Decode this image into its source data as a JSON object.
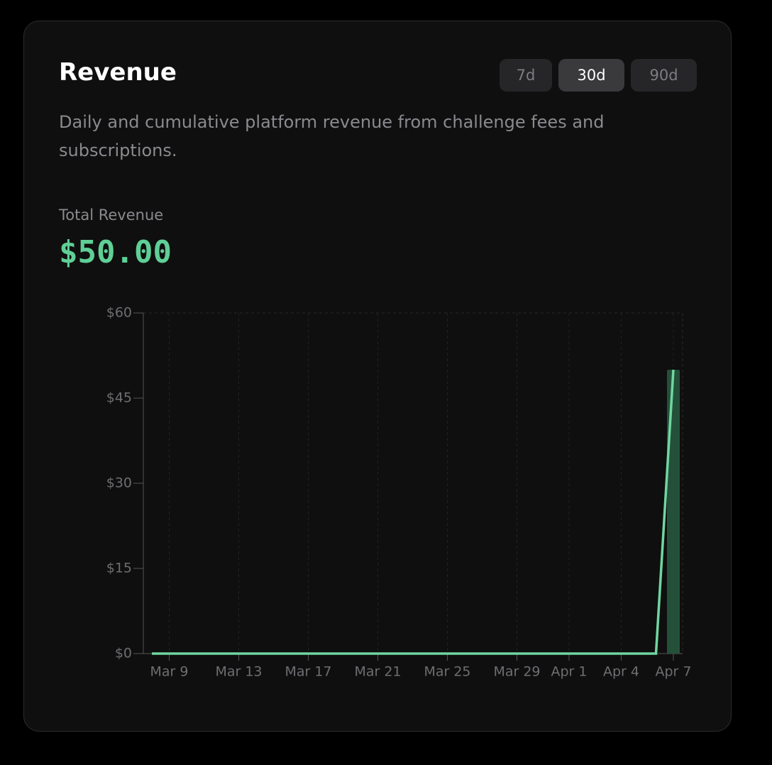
{
  "header": {
    "title": "Revenue",
    "description": "Daily and cumulative platform revenue from challenge fees and subscriptions."
  },
  "ranges": [
    {
      "label": "7d",
      "active": false
    },
    {
      "label": "30d",
      "active": true
    },
    {
      "label": "90d",
      "active": false
    }
  ],
  "summary": {
    "label": "Total Revenue",
    "value": "$50.00"
  },
  "chart_data": {
    "type": "combo",
    "categories": [
      null,
      "Mar 9",
      null,
      null,
      null,
      "Mar 13",
      null,
      null,
      null,
      "Mar 17",
      null,
      null,
      null,
      "Mar 21",
      null,
      null,
      null,
      "Mar 25",
      null,
      null,
      null,
      "Mar 29",
      null,
      null,
      "Apr 1",
      null,
      null,
      "Apr 4",
      null,
      null,
      "Apr 7"
    ],
    "series": [
      {
        "type": "bar",
        "color": "#24503a",
        "values": [
          0,
          0,
          0,
          0,
          0,
          0,
          0,
          0,
          0,
          0,
          0,
          0,
          0,
          0,
          0,
          0,
          0,
          0,
          0,
          0,
          0,
          0,
          0,
          0,
          0,
          0,
          0,
          0,
          0,
          0,
          50
        ]
      },
      {
        "type": "line",
        "color": "#6fd6a0",
        "values": [
          0,
          0,
          0,
          0,
          0,
          0,
          0,
          0,
          0,
          0,
          0,
          0,
          0,
          0,
          0,
          0,
          0,
          0,
          0,
          0,
          0,
          0,
          0,
          0,
          0,
          0,
          0,
          0,
          0,
          0,
          50
        ]
      }
    ],
    "ylim": [
      0,
      60
    ],
    "yticks": [
      {
        "value": 0,
        "label": "$0"
      },
      {
        "value": 15,
        "label": "$15"
      },
      {
        "value": 30,
        "label": "$30"
      },
      {
        "value": 45,
        "label": "$45"
      },
      {
        "value": 60,
        "label": "$60"
      }
    ]
  }
}
